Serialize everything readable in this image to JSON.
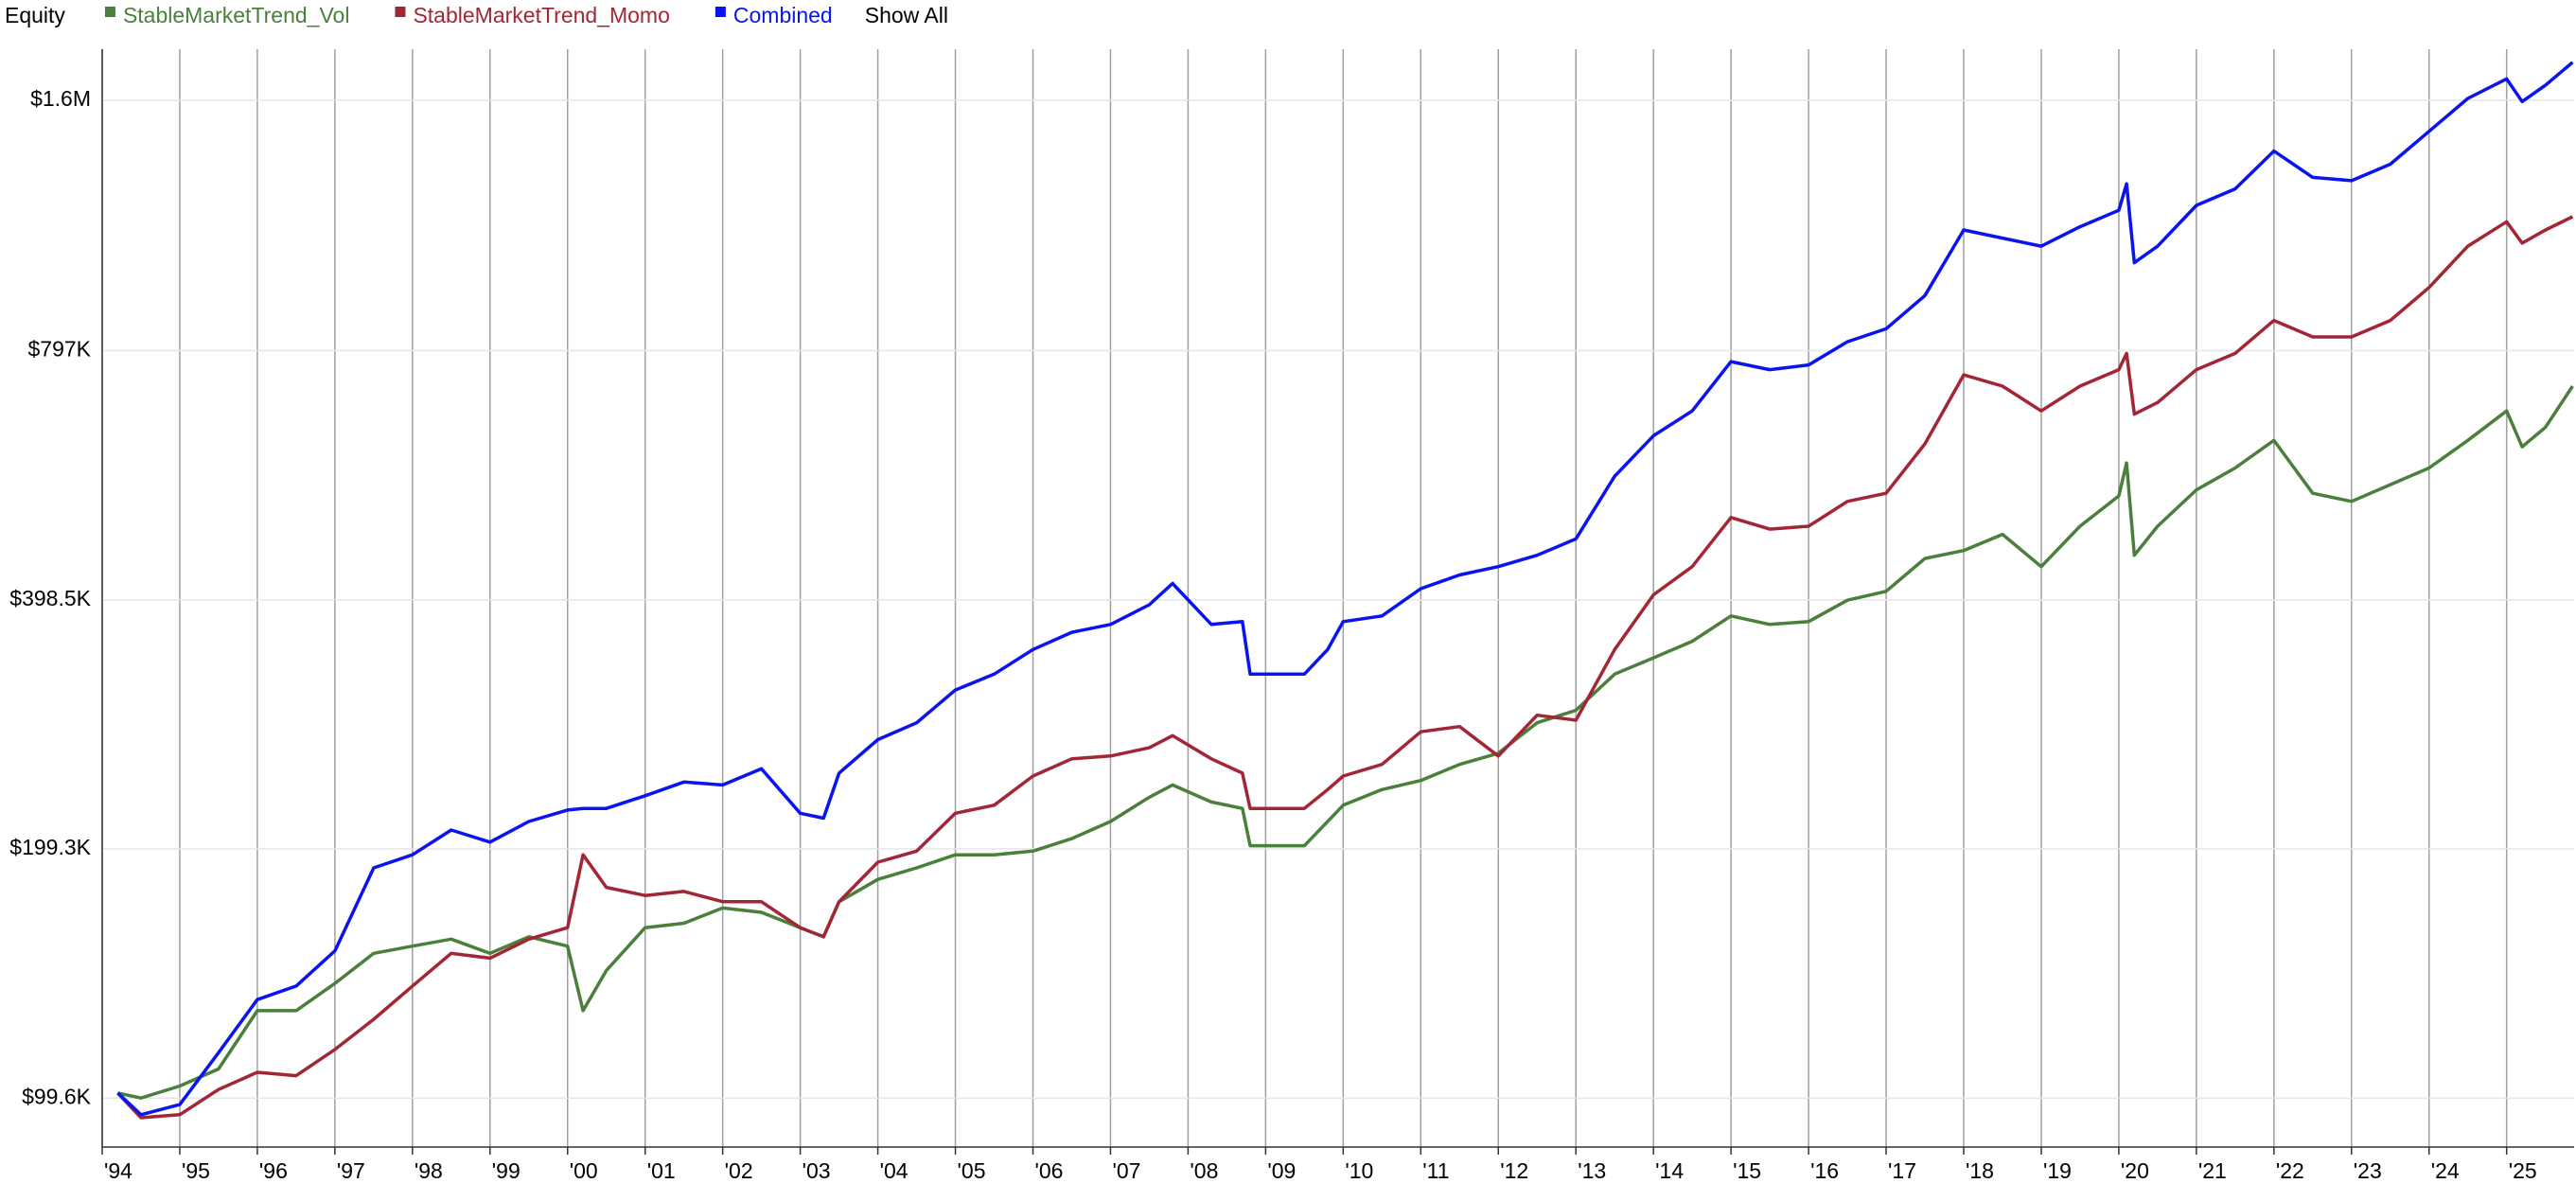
{
  "chart_data": {
    "type": "line",
    "title": "Equity",
    "show_all_label": "Show All",
    "log_scale": true,
    "grid": true,
    "x": [
      1994.2,
      1994.5,
      1995,
      1995.5,
      1996,
      1996.5,
      1997,
      1997.5,
      1998,
      1998.5,
      1999,
      1999.5,
      2000,
      2000.2,
      2000.5,
      2001,
      2001.5,
      2002,
      2002.5,
      2003,
      2003.3,
      2003.5,
      2004,
      2004.5,
      2005,
      2005.5,
      2006,
      2006.5,
      2007,
      2007.5,
      2007.8,
      2008.3,
      2008.7,
      2008.8,
      2009.5,
      2009.8,
      2010,
      2010.5,
      2011,
      2011.5,
      2012,
      2012.5,
      2013,
      2013.5,
      2014,
      2014.5,
      2015,
      2015.5,
      2016,
      2016.5,
      2017,
      2017.5,
      2018,
      2018.5,
      2019,
      2019.5,
      2020,
      2020.1,
      2020.2,
      2020.5,
      2021,
      2021.5,
      2022,
      2022.5,
      2023,
      2023.5,
      2024,
      2024.5,
      2025,
      2025.2,
      2025.5,
      2025.85
    ],
    "series": [
      {
        "name": "StableMarketTrend_Vol",
        "color": "#4a7f3c",
        "values": [
          101000,
          99600,
          103000,
          108000,
          127000,
          127000,
          137000,
          149000,
          152000,
          155000,
          149000,
          156000,
          152000,
          127000,
          142000,
          160000,
          162000,
          169000,
          167000,
          160000,
          156000,
          172000,
          183000,
          189000,
          196000,
          196000,
          198000,
          205000,
          215000,
          230000,
          238000,
          227000,
          223000,
          201000,
          201000,
          215000,
          225000,
          235000,
          241000,
          252000,
          260000,
          283000,
          293000,
          324000,
          339000,
          355000,
          381000,
          372000,
          375000,
          398000,
          408000,
          447000,
          457000,
          478000,
          437000,
          489000,
          532000,
          583000,
          451000,
          489000,
          541000,
          575000,
          621000,
          536000,
          524000,
          549000,
          575000,
          621000,
          674000,
          610000,
          644000,
          722000
        ]
      },
      {
        "name": "StableMarketTrend_Momo",
        "color": "#a32636",
        "values": [
          101000,
          94300,
          95100,
          102000,
          107000,
          106000,
          114000,
          124000,
          136000,
          149000,
          147000,
          155000,
          160000,
          196000,
          179000,
          175000,
          177000,
          172000,
          172000,
          160000,
          156000,
          172000,
          192000,
          198000,
          220000,
          225000,
          244000,
          256000,
          258000,
          264000,
          273000,
          256000,
          246000,
          223000,
          223000,
          235000,
          244000,
          252000,
          276000,
          280000,
          258000,
          289000,
          285000,
          347000,
          404000,
          437000,
          501000,
          485000,
          489000,
          524000,
          536000,
          615000,
          745000,
          722000,
          674000,
          722000,
          756000,
          791000,
          668000,
          690000,
          756000,
          791000,
          867000,
          828000,
          828000,
          867000,
          950000,
          1066000,
          1141000,
          1075000,
          1115000,
          1157000
        ]
      },
      {
        "name": "Combined",
        "color": "#0a14f0",
        "values": [
          101000,
          95100,
          97800,
          113000,
          131000,
          136000,
          150000,
          189000,
          196000,
          210000,
          203000,
          215000,
          222000,
          223000,
          223000,
          231000,
          240000,
          238000,
          249000,
          220000,
          217000,
          246000,
          270000,
          283000,
          310000,
          324000,
          347000,
          364000,
          372000,
          393000,
          417000,
          372000,
          375000,
          324000,
          324000,
          347000,
          375000,
          381000,
          411000,
          427000,
          437000,
          451000,
          472000,
          562000,
          629000,
          674000,
          773000,
          756000,
          766000,
          817000,
          847000,
          929000,
          1115000,
          1090000,
          1066000,
          1125000,
          1178000,
          1268000,
          1018000,
          1066000,
          1194000,
          1250000,
          1389000,
          1291000,
          1279000,
          1339000,
          1467000,
          1608000,
          1698000,
          1594000,
          1668000,
          1778000
        ]
      }
    ],
    "xlim": [
      1994,
      2025.87
    ],
    "xticks": [
      {
        "value": 1994,
        "label": "'94"
      },
      {
        "value": 1995,
        "label": "'95"
      },
      {
        "value": 1996,
        "label": "'96"
      },
      {
        "value": 1997,
        "label": "'97"
      },
      {
        "value": 1998,
        "label": "'98"
      },
      {
        "value": 1999,
        "label": "'99"
      },
      {
        "value": 2000,
        "label": "'00"
      },
      {
        "value": 2001,
        "label": "'01"
      },
      {
        "value": 2002,
        "label": "'02"
      },
      {
        "value": 2003,
        "label": "'03"
      },
      {
        "value": 2004,
        "label": "'04"
      },
      {
        "value": 2005,
        "label": "'05"
      },
      {
        "value": 2006,
        "label": "'06"
      },
      {
        "value": 2007,
        "label": "'07"
      },
      {
        "value": 2008,
        "label": "'08"
      },
      {
        "value": 2009,
        "label": "'09"
      },
      {
        "value": 2010,
        "label": "'10"
      },
      {
        "value": 2011,
        "label": "'11"
      },
      {
        "value": 2012,
        "label": "'12"
      },
      {
        "value": 2013,
        "label": "'13"
      },
      {
        "value": 2014,
        "label": "'14"
      },
      {
        "value": 2015,
        "label": "'15"
      },
      {
        "value": 2016,
        "label": "'16"
      },
      {
        "value": 2017,
        "label": "'17"
      },
      {
        "value": 2018,
        "label": "'18"
      },
      {
        "value": 2019,
        "label": "'19"
      },
      {
        "value": 2020,
        "label": "'20"
      },
      {
        "value": 2021,
        "label": "'21"
      },
      {
        "value": 2022,
        "label": "'22"
      },
      {
        "value": 2023,
        "label": "'23"
      },
      {
        "value": 2024,
        "label": "'24"
      },
      {
        "value": 2025,
        "label": "'25"
      }
    ],
    "ylim": [
      86900,
      1844000
    ],
    "yticks": [
      {
        "value": 99600,
        "label": "$99.6K"
      },
      {
        "value": 199300,
        "label": "$199.3K"
      },
      {
        "value": 398500,
        "label": "$398.5K"
      },
      {
        "value": 797000,
        "label": "$797K"
      },
      {
        "value": 1600000,
        "label": "$1.6M"
      }
    ]
  }
}
